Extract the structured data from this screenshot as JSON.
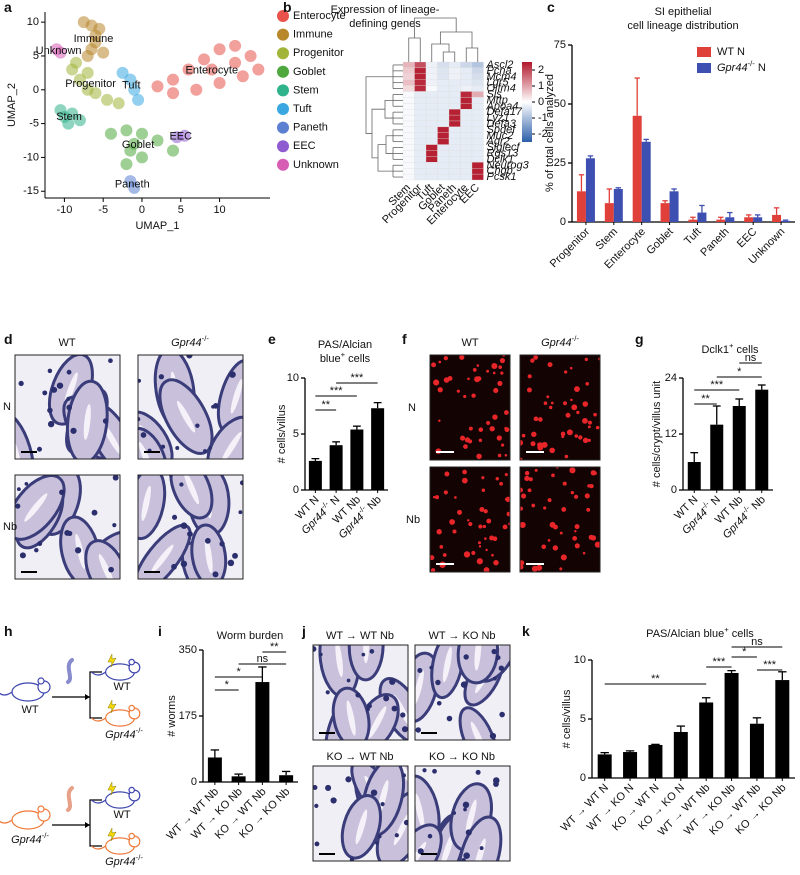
{
  "chart_data": [
    {
      "panel": "a",
      "type": "scatter",
      "xlabel": "UMAP_1",
      "ylabel": "UMAP_2",
      "xlim": [
        -12.5,
        16.5
      ],
      "ylim": [
        -16,
        11.5
      ],
      "xticks": [
        -10,
        -5,
        0,
        5,
        10
      ],
      "yticks": [
        -15,
        -10,
        -5,
        0,
        5,
        10
      ],
      "series": [
        {
          "name": "Enterocyte",
          "color": "#e8524a",
          "x": [
            2,
            4,
            6,
            8,
            10,
            12,
            14,
            15,
            13,
            10,
            7,
            4,
            9,
            12
          ],
          "y": [
            0.5,
            1.5,
            3,
            4.5,
            6,
            6.5,
            5,
            3,
            2,
            1,
            0,
            -0.5,
            3,
            4
          ]
        },
        {
          "name": "Immune",
          "color": "#b8862b",
          "x": [
            -7.5,
            -6.5,
            -5.5,
            -6,
            -6,
            -6.5,
            -5,
            -7
          ],
          "y": [
            10,
            9.5,
            9,
            8,
            7,
            6,
            5.5,
            5
          ]
        },
        {
          "name": "Progenitor",
          "color": "#a3b43a",
          "x": [
            -9,
            -8,
            -7,
            -6,
            -4.5,
            -3,
            -8.5,
            -7
          ],
          "y": [
            3,
            1.5,
            0,
            -0.5,
            -1.5,
            -2,
            4,
            2.5
          ]
        },
        {
          "name": "Goblet",
          "color": "#4fa83d",
          "x": [
            -4,
            -2,
            0,
            2,
            4,
            -1,
            0,
            -2,
            -1.5
          ],
          "y": [
            -6.5,
            -6,
            -6.5,
            -7.5,
            -9,
            -8,
            -10,
            -11,
            -9
          ]
        },
        {
          "name": "Stem",
          "color": "#2fb38a",
          "x": [
            -10,
            -9,
            -8,
            -10.5,
            -9.5
          ],
          "y": [
            -4,
            -3.5,
            -4.5,
            -3,
            -5
          ]
        },
        {
          "name": "Tuft",
          "color": "#3aa7e0",
          "x": [
            -2.5,
            -1.5,
            -1,
            -0.5
          ],
          "y": [
            2.5,
            1.5,
            0,
            -1.5
          ]
        },
        {
          "name": "Paneth",
          "color": "#5b7fd1",
          "x": [
            -1.5,
            -1
          ],
          "y": [
            -13.5,
            -14.5
          ]
        },
        {
          "name": "EEC",
          "color": "#8e5bd1",
          "x": [
            4.5,
            5.5
          ],
          "y": [
            -7,
            -6.8
          ]
        },
        {
          "name": "Unknown",
          "color": "#d65fb5",
          "x": [
            -11,
            -10.5
          ],
          "y": [
            6,
            5.5
          ]
        }
      ]
    },
    {
      "panel": "b",
      "type": "heatmap",
      "title": [
        "Expression of lineage-",
        "defining genes"
      ],
      "columns": [
        "Stem",
        "Progenitor",
        "Tuft",
        "Goblet",
        "Paneth",
        "Enterocyte",
        "EEC"
      ],
      "rows": [
        "Ascl2",
        "Pcna",
        "Mcm4",
        "Lgr5",
        "Olfm4",
        "Sis",
        "Mttp",
        "Apoa4",
        "Defa17",
        "Lyz1",
        "Defa3",
        "Spdef",
        "Muc2",
        "Agr2",
        "Siglecf",
        "Rgs13",
        "Dclk1",
        "Neurog3",
        "Chgb",
        "Pcsk1"
      ],
      "values": [
        [
          0.8,
          1.9,
          -0.2,
          -0.5,
          -0.3,
          -0.6,
          -0.9
        ],
        [
          0.6,
          2.4,
          -0.2,
          -0.4,
          -0.2,
          -0.3,
          -0.6
        ],
        [
          0.5,
          2.4,
          -0.2,
          -0.4,
          -0.2,
          -0.3,
          -0.5
        ],
        [
          0.7,
          2.3,
          -0.2,
          -0.3,
          -0.3,
          -0.3,
          -0.4
        ],
        [
          0.4,
          2.3,
          -0.1,
          -0.3,
          -0.3,
          -0.2,
          -0.3
        ],
        [
          -0.1,
          -0.3,
          -0.3,
          -0.3,
          -0.3,
          2.3,
          0.9
        ],
        [
          -0.1,
          -0.3,
          -0.3,
          -0.3,
          -0.3,
          2.4,
          -0.3
        ],
        [
          -0.1,
          -0.3,
          -0.3,
          -0.3,
          -0.3,
          2.4,
          -0.3
        ],
        [
          -0.1,
          -0.3,
          -0.3,
          -0.3,
          2.4,
          -0.3,
          -0.3
        ],
        [
          -0.1,
          -0.3,
          -0.3,
          -0.3,
          2.4,
          -0.3,
          -0.3
        ],
        [
          -0.1,
          -0.3,
          -0.3,
          -0.3,
          2.4,
          -0.3,
          -0.3
        ],
        [
          -0.1,
          -0.3,
          -0.3,
          2.4,
          -0.3,
          -0.3,
          -0.3
        ],
        [
          -0.1,
          -0.3,
          -0.3,
          2.4,
          -0.3,
          -0.3,
          -0.3
        ],
        [
          -0.1,
          -0.3,
          -0.3,
          2.4,
          -0.3,
          -0.3,
          -0.3
        ],
        [
          -0.1,
          -0.3,
          2.4,
          -0.3,
          -0.3,
          -0.3,
          -0.3
        ],
        [
          -0.1,
          -0.3,
          2.4,
          -0.3,
          -0.3,
          -0.3,
          -0.3
        ],
        [
          -0.1,
          -0.3,
          2.4,
          -0.3,
          -0.3,
          -0.3,
          -0.3
        ],
        [
          -0.1,
          -0.3,
          -0.3,
          -0.3,
          -0.3,
          -0.3,
          2.4
        ],
        [
          -0.1,
          -0.3,
          -0.3,
          -0.3,
          -0.3,
          -0.3,
          2.4
        ],
        [
          -0.1,
          -0.3,
          -0.3,
          -0.3,
          -0.3,
          -0.3,
          2.4
        ]
      ],
      "zlim": [
        -2.5,
        2.5
      ],
      "zticks": [
        2,
        1,
        0,
        -1,
        -2
      ],
      "colors": [
        "#2c5ea8",
        "#ffffff",
        "#b2182b"
      ]
    },
    {
      "panel": "c",
      "type": "bar",
      "title": [
        "SI epithelial",
        "cell lineage distribution"
      ],
      "ylabel": "% of total cells analyzed",
      "categories": [
        "Progenitor",
        "Stem",
        "Enterocyte",
        "Goblet",
        "Tuft",
        "Paneth",
        "EEC",
        "Unknown"
      ],
      "series": [
        {
          "name": "WT N",
          "color": "#e0403a",
          "values": [
            13,
            8,
            45,
            8,
            1,
            1,
            2,
            3
          ],
          "errors": [
            7,
            6,
            16,
            1,
            1,
            1,
            1,
            3
          ]
        },
        {
          "name": "Gpr44-/- N",
          "color": "#3e4fb2",
          "values": [
            27,
            14,
            34,
            13,
            4,
            2,
            2,
            0.5
          ],
          "errors": [
            1,
            0.5,
            1,
            1,
            3,
            2,
            1,
            0.3
          ]
        }
      ],
      "ylim": [
        0,
        75
      ],
      "yticks": [
        0,
        25,
        50,
        75
      ]
    },
    {
      "panel": "e",
      "type": "bar",
      "title": [
        "PAS/Alcian",
        "blue+ cells"
      ],
      "ylabel": "# cells/villus",
      "categories": [
        "WT N",
        "Gpr44-/- N",
        "WT Nb",
        "Gpr44-/- Nb"
      ],
      "color": "#000000",
      "values": [
        2.6,
        4.0,
        5.4,
        7.3
      ],
      "errors": [
        0.2,
        0.3,
        0.3,
        0.5
      ],
      "ylim": [
        0,
        10
      ],
      "yticks": [
        0,
        5,
        10
      ],
      "significance": [
        "***",
        "***",
        "**"
      ]
    },
    {
      "panel": "g",
      "type": "bar",
      "title": [
        "Dclk1+ cells"
      ],
      "ylabel": "# cells/crypt/villus unit",
      "categories": [
        "WT N",
        "Gpr44-/- N",
        "WT Nb",
        "Gpr44-/- Nb"
      ],
      "color": "#000000",
      "values": [
        6,
        14,
        18,
        21.5
      ],
      "errors": [
        2,
        4,
        1.5,
        1
      ],
      "ylim": [
        0,
        24
      ],
      "yticks": [
        0,
        12,
        24
      ],
      "significance": [
        "ns",
        "*",
        "***",
        "**"
      ]
    },
    {
      "panel": "i",
      "type": "bar",
      "title": [
        "Worm burden"
      ],
      "ylabel": "# worms",
      "categories": [
        "WT → WT Nb",
        "WT → KO Nb",
        "KO → WT Nb",
        "KO → KO Nb"
      ],
      "color": "#000000",
      "values": [
        65,
        15,
        265,
        18
      ],
      "errors": [
        20,
        6,
        40,
        10
      ],
      "ylim": [
        0,
        350
      ],
      "yticks": [
        0,
        175,
        350
      ],
      "significance": [
        "**",
        "ns",
        "*",
        "*"
      ]
    },
    {
      "panel": "k",
      "type": "bar",
      "title": [
        "PAS/Alcian blue+ cells"
      ],
      "ylabel": "# cells/villus",
      "categories": [
        "WT → WT N",
        "WT → KO N",
        "KO → WT N",
        "KO → KO N",
        "WT → WT Nb",
        "WT → KO Nb",
        "KO → WT Nb",
        "KO → KO Nb"
      ],
      "color": "#000000",
      "values": [
        2.0,
        2.2,
        2.8,
        3.9,
        6.4,
        8.9,
        4.6,
        8.3
      ],
      "errors": [
        0.15,
        0.1,
        0.05,
        0.5,
        0.4,
        0.2,
        0.5,
        0.7
      ],
      "ylim": [
        0,
        10
      ],
      "yticks": [
        0,
        5,
        10
      ],
      "significance": [
        "ns",
        "*",
        "***",
        "***",
        "**"
      ]
    }
  ],
  "images": {
    "d": {
      "panel": "d",
      "columns": [
        "WT",
        "Gpr44-/-"
      ],
      "rows": [
        "N",
        "Nb"
      ]
    },
    "f": {
      "panel": "f",
      "columns": [
        "WT",
        "Gpr44-/-"
      ],
      "rows": [
        "N",
        "Nb"
      ]
    },
    "h": {
      "panel": "h",
      "labels": [
        "WT",
        "WT",
        "Gpr44-/-",
        "Gpr44-/-",
        "WT",
        "Gpr44-/-"
      ]
    },
    "j": {
      "panel": "j",
      "titles": [
        "WT → WT Nb",
        "WT → KO Nb",
        "KO → WT Nb",
        "KO → KO Nb"
      ]
    }
  }
}
